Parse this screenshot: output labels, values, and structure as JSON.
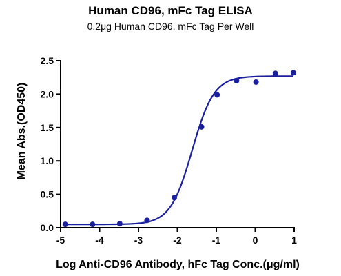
{
  "chart_data": {
    "type": "scatter",
    "title": "Human CD96, mFc Tag ELISA",
    "subtitle": "0.2μg Human CD96, mFc Tag Per Well",
    "xlabel": "Log Anti-CD96 Antibody, hFc Tag Conc.(μg/ml)",
    "ylabel": "Mean Abs.(OD450)",
    "xlim": [
      -5,
      1
    ],
    "ylim": [
      0,
      2.5
    ],
    "x_ticks": [
      "-5",
      "-4",
      "-3",
      "-2",
      "-1",
      "0",
      "1"
    ],
    "y_ticks": [
      "0.0",
      "0.5",
      "1.0",
      "1.5",
      "2.0",
      "2.5"
    ],
    "grid": false,
    "legend": "none",
    "series": [
      {
        "x": [
          -4.88,
          -4.18,
          -3.48,
          -2.78,
          -2.08,
          -1.38,
          -0.98,
          -0.48,
          0.02,
          0.52,
          0.98
        ],
        "y": [
          0.05,
          0.05,
          0.06,
          0.11,
          0.45,
          1.51,
          1.99,
          2.2,
          2.18,
          2.31,
          2.32
        ],
        "color": "#1a1f9e",
        "fit": {
          "model": "4PL",
          "bottom": 0.05,
          "top": 2.27,
          "log_ec50": -1.62,
          "hill": 1.55
        }
      }
    ]
  }
}
